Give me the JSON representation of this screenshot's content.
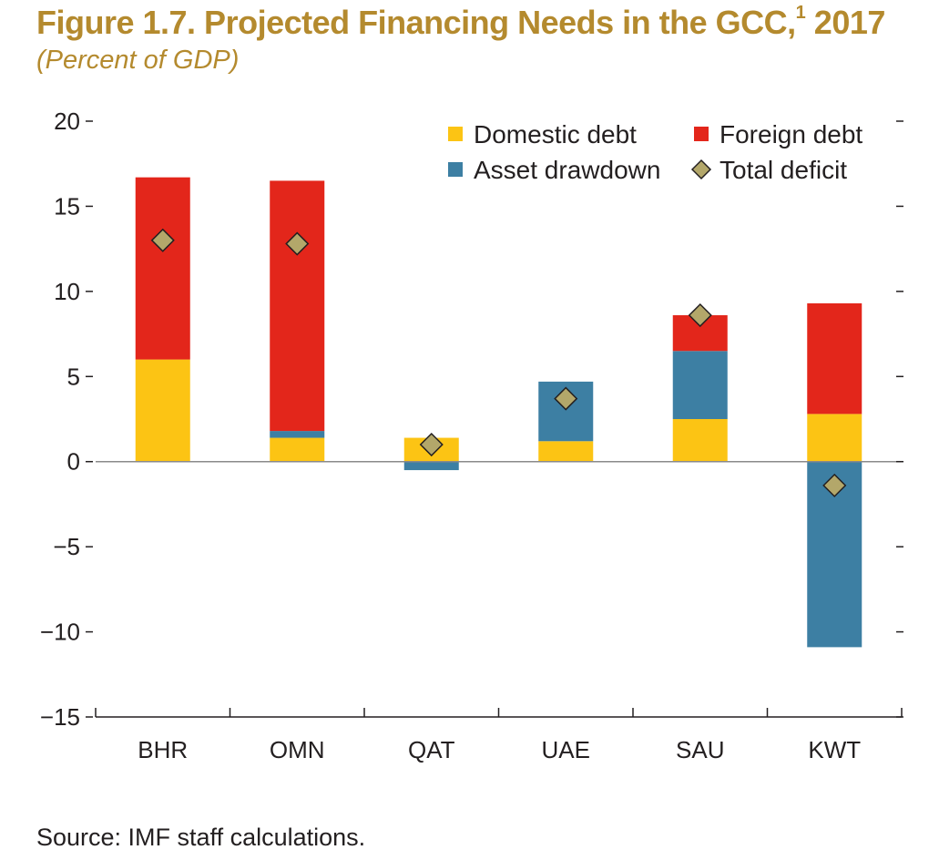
{
  "title": "Figure 1.7. Projected Financing Needs in the GCC,",
  "title_footnote": "1",
  "title_year": " 2017",
  "subtitle": "(Percent of GDP)",
  "source": "Source: IMF staff calculations.",
  "colors": {
    "title": "#b48a2e",
    "domestic": "#fcc414",
    "asset": "#3d7fa3",
    "foreign": "#e3261b",
    "deficit": "#b3a76a"
  },
  "chart_data": {
    "type": "bar",
    "stacked": true,
    "categories": [
      "BHR",
      "OMN",
      "QAT",
      "UAE",
      "SAU",
      "KWT"
    ],
    "ylim": [
      -15,
      20
    ],
    "yticks": [
      20,
      15,
      10,
      5,
      0,
      -5,
      -10,
      -15
    ],
    "ytick_labels": [
      "20",
      "15",
      "10",
      "5",
      "0",
      "−5",
      "−10",
      "−15"
    ],
    "legend_position": "top-right",
    "series": [
      {
        "name": "Domestic debt",
        "color_key": "domestic",
        "values": [
          6.0,
          1.4,
          1.4,
          1.2,
          2.5,
          2.8
        ]
      },
      {
        "name": "Asset drawdown",
        "color_key": "asset",
        "values": [
          0.0,
          0.4,
          -0.5,
          3.5,
          4.0,
          -10.9
        ]
      },
      {
        "name": "Foreign debt",
        "color_key": "foreign",
        "values": [
          10.7,
          14.7,
          0.0,
          0.0,
          2.1,
          6.5
        ]
      }
    ],
    "markers": {
      "name": "Total deficit",
      "color_key": "deficit",
      "values": [
        13.0,
        12.8,
        1.0,
        3.7,
        8.6,
        -1.4
      ]
    }
  }
}
